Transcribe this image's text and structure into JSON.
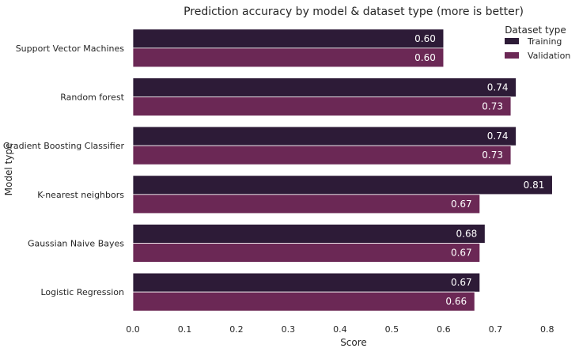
{
  "chart_data": {
    "type": "bar",
    "orientation": "horizontal",
    "title": "Prediction accuracy by model & dataset type (more is better)",
    "xlabel": "Score",
    "ylabel": "Model type",
    "categories": [
      "Support Vector Machines",
      "Random forest",
      "Gradient Boosting Classifier",
      "K-nearest neighbors",
      "Gaussian Naive Bayes",
      "Logistic Regression"
    ],
    "series": [
      {
        "name": "Training",
        "color": "#2d1b37",
        "values": [
          0.6,
          0.74,
          0.74,
          0.81,
          0.68,
          0.67
        ]
      },
      {
        "name": "Validation",
        "color": "#6b2855",
        "values": [
          0.6,
          0.73,
          0.73,
          0.67,
          0.67,
          0.66
        ]
      }
    ],
    "xlim": [
      0,
      0.84
    ],
    "xticks": [
      0.0,
      0.1,
      0.2,
      0.3,
      0.4,
      0.5,
      0.6,
      0.7,
      0.8
    ],
    "xtick_labels": [
      "0.0",
      "0.1",
      "0.2",
      "0.3",
      "0.4",
      "0.5",
      "0.6",
      "0.7",
      "0.8"
    ],
    "data_labels": [
      [
        "0.60",
        "0.74",
        "0.74",
        "0.81",
        "0.68",
        "0.67"
      ],
      [
        "0.60",
        "0.73",
        "0.73",
        "0.67",
        "0.67",
        "0.66"
      ]
    ],
    "grid": false,
    "legend": {
      "title": "Dataset type",
      "position": "top-right"
    }
  }
}
